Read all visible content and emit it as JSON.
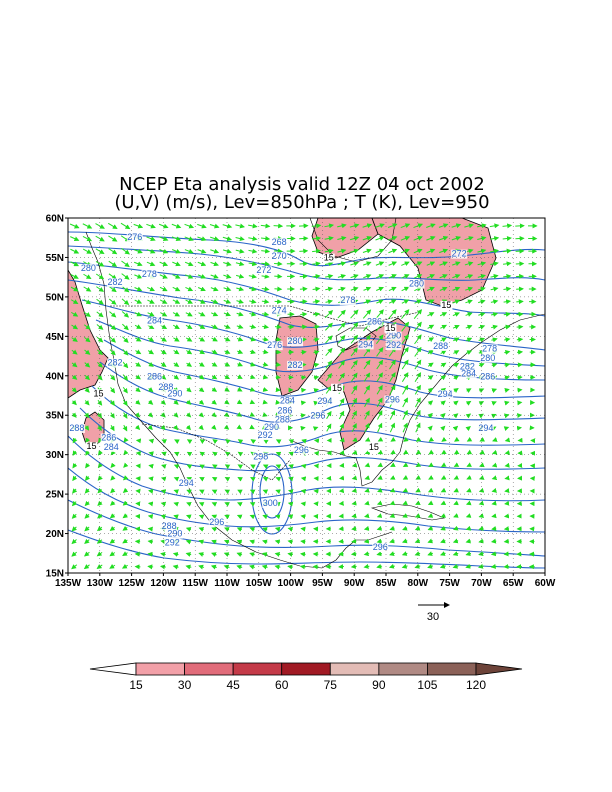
{
  "title_line1": "NCEP Eta analysis valid 12Z 04 oct 2002",
  "title_line2": "(U,V) (m/s), Lev=850hPa ; T (K), Lev=950",
  "lat_labels": [
    "60N",
    "55N",
    "50N",
    "45N",
    "40N",
    "35N",
    "30N",
    "25N",
    "20N",
    "15N"
  ],
  "lon_labels": [
    "135W",
    "130W",
    "125W",
    "120W",
    "115W",
    "110W",
    "105W",
    "100W",
    "95W",
    "90W",
    "85W",
    "80W",
    "75W",
    "70W",
    "65W",
    "60W"
  ],
  "lat_values": [
    60,
    55,
    50,
    45,
    40,
    35,
    30,
    25,
    20,
    15
  ],
  "lon_values": [
    -135,
    -130,
    -125,
    -120,
    -115,
    -110,
    -105,
    -100,
    -95,
    -90,
    -85,
    -80,
    -75,
    -70,
    -65,
    -60
  ],
  "contour_labels": [
    {
      "text": "276",
      "lon": -124.5,
      "lat": 57.2
    },
    {
      "text": "268",
      "lon": -101.8,
      "lat": 56.6
    },
    {
      "text": "270",
      "lon": -101.8,
      "lat": 54.8
    },
    {
      "text": "272",
      "lon": -104.2,
      "lat": 53.0
    },
    {
      "text": "272",
      "lon": -73.5,
      "lat": 55.1
    },
    {
      "text": "280",
      "lon": -131.8,
      "lat": 53.3
    },
    {
      "text": "278",
      "lon": -122.2,
      "lat": 52.5
    },
    {
      "text": "282",
      "lon": -127.6,
      "lat": 51.5
    },
    {
      "text": "278",
      "lon": -91.0,
      "lat": 49.2
    },
    {
      "text": "280",
      "lon": -80.2,
      "lat": 51.3
    },
    {
      "text": "274",
      "lon": -101.8,
      "lat": 47.9
    },
    {
      "text": "284",
      "lon": -121.4,
      "lat": 46.6
    },
    {
      "text": "276",
      "lon": -102.5,
      "lat": 43.5
    },
    {
      "text": "280",
      "lon": -99.3,
      "lat": 44.0
    },
    {
      "text": "286",
      "lon": -86.8,
      "lat": 46.5
    },
    {
      "text": "290",
      "lon": -83.8,
      "lat": 44.7
    },
    {
      "text": "294",
      "lon": -88.2,
      "lat": 43.6
    },
    {
      "text": "292",
      "lon": -83.8,
      "lat": 43.5
    },
    {
      "text": "288",
      "lon": -76.4,
      "lat": 43.4
    },
    {
      "text": "278",
      "lon": -68.7,
      "lat": 43.1
    },
    {
      "text": "280",
      "lon": -69.0,
      "lat": 41.9
    },
    {
      "text": "282",
      "lon": -72.2,
      "lat": 40.8
    },
    {
      "text": "284",
      "lon": -72.0,
      "lat": 39.9
    },
    {
      "text": "286",
      "lon": -69.0,
      "lat": 39.5
    },
    {
      "text": "282",
      "lon": -127.6,
      "lat": 41.3
    },
    {
      "text": "286",
      "lon": -121.4,
      "lat": 39.5
    },
    {
      "text": "288",
      "lon": -119.6,
      "lat": 38.2
    },
    {
      "text": "290",
      "lon": -118.2,
      "lat": 37.4
    },
    {
      "text": "282",
      "lon": -99.3,
      "lat": 41.0
    },
    {
      "text": "284",
      "lon": -100.5,
      "lat": 36.5
    },
    {
      "text": "294",
      "lon": -94.6,
      "lat": 36.4
    },
    {
      "text": "286",
      "lon": -100.9,
      "lat": 35.2
    },
    {
      "text": "288",
      "lon": -101.3,
      "lat": 34.1
    },
    {
      "text": "296",
      "lon": -95.7,
      "lat": 34.6
    },
    {
      "text": "290",
      "lon": -103.0,
      "lat": 33.1
    },
    {
      "text": "292",
      "lon": -104.0,
      "lat": 32.1
    },
    {
      "text": "296",
      "lon": -84.0,
      "lat": 36.6
    },
    {
      "text": "294",
      "lon": -75.7,
      "lat": 37.3
    },
    {
      "text": "294",
      "lon": -69.3,
      "lat": 33.0
    },
    {
      "text": "288",
      "lon": -133.6,
      "lat": 33.0
    },
    {
      "text": "286",
      "lon": -128.6,
      "lat": 31.8
    },
    {
      "text": "284",
      "lon": -128.2,
      "lat": 30.6
    },
    {
      "text": "298",
      "lon": -104.7,
      "lat": 29.4
    },
    {
      "text": "296",
      "lon": -98.3,
      "lat": 30.2
    },
    {
      "text": "294",
      "lon": -116.4,
      "lat": 26.0
    },
    {
      "text": "300",
      "lon": -103.2,
      "lat": 23.5
    },
    {
      "text": "296",
      "lon": -111.6,
      "lat": 21.1
    },
    {
      "text": "288",
      "lon": -119.1,
      "lat": 20.6
    },
    {
      "text": "290",
      "lon": -118.2,
      "lat": 19.6
    },
    {
      "text": "292",
      "lon": -118.6,
      "lat": 18.5
    },
    {
      "text": "296",
      "lon": -85.9,
      "lat": 17.9
    }
  ],
  "speed_labels": [
    {
      "text": "15",
      "lon": -94.0,
      "lat": 54.6
    },
    {
      "text": "15",
      "lon": -75.5,
      "lat": 48.6
    },
    {
      "text": "15",
      "lon": -84.3,
      "lat": 45.7
    },
    {
      "text": "15",
      "lon": -92.7,
      "lat": 38.1
    },
    {
      "text": "15",
      "lon": -130.2,
      "lat": 37.4
    },
    {
      "text": "15",
      "lon": -131.3,
      "lat": 30.7
    },
    {
      "text": "15",
      "lon": -86.9,
      "lat": 30.6
    }
  ],
  "shading_threshold": 15,
  "vector_reference_label": "30",
  "vector_reference_value": 30,
  "colorbar": {
    "levels": [
      "15",
      "30",
      "45",
      "60",
      "75",
      "90",
      "105",
      "120"
    ],
    "colors": [
      "#ffffff",
      "#f2a0a8",
      "#e16c7a",
      "#c43a48",
      "#a11a24",
      "#e3bcb6",
      "#b08a84",
      "#8b6158",
      "#6d4339"
    ]
  },
  "colors": {
    "contour": "#2a64c8",
    "vector": "#22dd22",
    "shade": "#f0a0a8",
    "coast": "#000000"
  }
}
